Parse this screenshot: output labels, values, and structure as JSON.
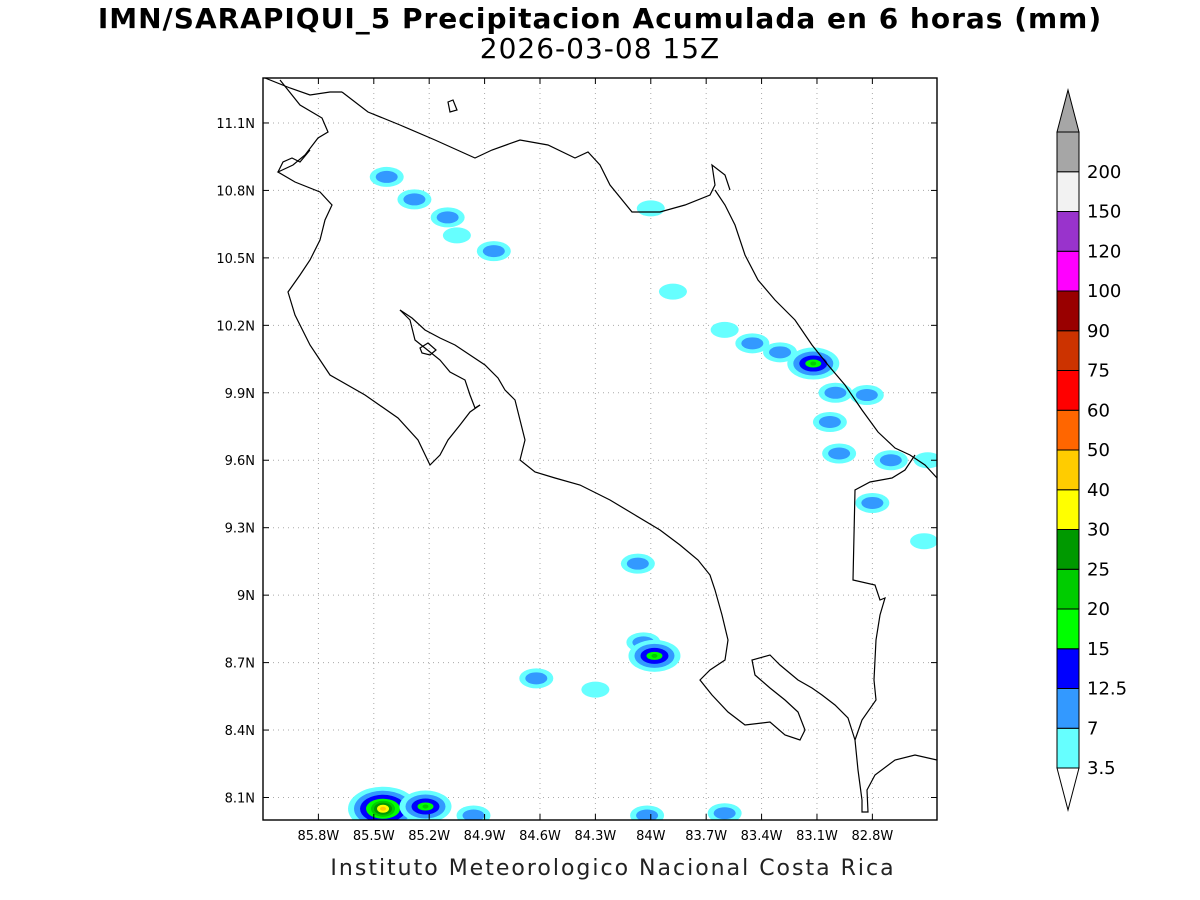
{
  "title": {
    "line1": "IMN/SARAPIQUI_5 Precipitacion Acumulada en 6 horas (mm)",
    "line2": "2026-03-08 15Z"
  },
  "footer": "Instituto Meteorologico Nacional Costa Rica",
  "map": {
    "lon_range": [
      -86.1,
      -82.45
    ],
    "lat_range": [
      8.0,
      11.3
    ],
    "x_ticks": [
      {
        "value": -85.8,
        "label": "85.8W"
      },
      {
        "value": -85.5,
        "label": "85.5W"
      },
      {
        "value": -85.2,
        "label": "85.2W"
      },
      {
        "value": -84.9,
        "label": "84.9W"
      },
      {
        "value": -84.6,
        "label": "84.6W"
      },
      {
        "value": -84.3,
        "label": "84.3W"
      },
      {
        "value": -84.0,
        "label": "84W"
      },
      {
        "value": -83.7,
        "label": "83.7W"
      },
      {
        "value": -83.4,
        "label": "83.4W"
      },
      {
        "value": -83.1,
        "label": "83.1W"
      },
      {
        "value": -82.8,
        "label": "82.8W"
      }
    ],
    "y_ticks": [
      {
        "value": 11.1,
        "label": "11.1N"
      },
      {
        "value": 10.8,
        "label": "10.8N"
      },
      {
        "value": 10.5,
        "label": "10.5N"
      },
      {
        "value": 10.2,
        "label": "10.2N"
      },
      {
        "value": 9.9,
        "label": "9.9N"
      },
      {
        "value": 9.6,
        "label": "9.6N"
      },
      {
        "value": 9.3,
        "label": "9.3N"
      },
      {
        "value": 9.0,
        "label": "9N"
      },
      {
        "value": 8.7,
        "label": "8.7N"
      },
      {
        "value": 8.4,
        "label": "8.4N"
      },
      {
        "value": 8.1,
        "label": "8.1N"
      }
    ],
    "grid": true,
    "precip_areas": [
      {
        "lon": -85.43,
        "lat": 10.86,
        "level": 7
      },
      {
        "lon": -85.28,
        "lat": 10.76,
        "level": 7
      },
      {
        "lon": -85.1,
        "lat": 10.68,
        "level": 7
      },
      {
        "lon": -85.05,
        "lat": 10.6,
        "level": 3.5
      },
      {
        "lon": -84.85,
        "lat": 10.53,
        "level": 7
      },
      {
        "lon": -84.0,
        "lat": 10.72,
        "level": 3.5
      },
      {
        "lon": -83.88,
        "lat": 10.35,
        "level": 3.5
      },
      {
        "lon": -83.6,
        "lat": 10.18,
        "level": 3.5
      },
      {
        "lon": -83.45,
        "lat": 10.12,
        "level": 7
      },
      {
        "lon": -83.3,
        "lat": 10.08,
        "level": 7
      },
      {
        "lon": -83.12,
        "lat": 10.03,
        "level": 20
      },
      {
        "lon": -83.0,
        "lat": 9.9,
        "level": 7
      },
      {
        "lon": -82.83,
        "lat": 9.89,
        "level": 7
      },
      {
        "lon": -83.03,
        "lat": 9.77,
        "level": 7
      },
      {
        "lon": -82.98,
        "lat": 9.63,
        "level": 7
      },
      {
        "lon": -82.7,
        "lat": 9.6,
        "level": 7
      },
      {
        "lon": -82.5,
        "lat": 9.6,
        "level": 3.5
      },
      {
        "lon": -82.8,
        "lat": 9.41,
        "level": 7
      },
      {
        "lon": -82.52,
        "lat": 9.24,
        "level": 3.5
      },
      {
        "lon": -84.07,
        "lat": 9.14,
        "level": 7
      },
      {
        "lon": -84.04,
        "lat": 8.79,
        "level": 7
      },
      {
        "lon": -83.98,
        "lat": 8.73,
        "level": 20
      },
      {
        "lon": -84.62,
        "lat": 8.63,
        "level": 7
      },
      {
        "lon": -84.3,
        "lat": 8.58,
        "level": 3.5
      },
      {
        "lon": -85.45,
        "lat": 8.05,
        "level": 40
      },
      {
        "lon": -85.22,
        "lat": 8.06,
        "level": 20
      },
      {
        "lon": -84.96,
        "lat": 8.02,
        "level": 7
      },
      {
        "lon": -84.02,
        "lat": 8.02,
        "level": 7
      },
      {
        "lon": -83.6,
        "lat": 8.03,
        "level": 7
      }
    ]
  },
  "colorbar": {
    "levels": [
      "3.5",
      "7",
      "12.5",
      "15",
      "20",
      "25",
      "30",
      "40",
      "50",
      "60",
      "75",
      "90",
      "100",
      "120",
      "150",
      "200"
    ],
    "colors": [
      "#66ffff",
      "#3399ff",
      "#0000ff",
      "#00ff00",
      "#00cc00",
      "#009900",
      "#ffff00",
      "#ffcc00",
      "#ff6600",
      "#ff0000",
      "#cc3300",
      "#990000",
      "#ff00ff",
      "#9933cc",
      "#f2f2f2",
      "#a6a6a6"
    ]
  }
}
